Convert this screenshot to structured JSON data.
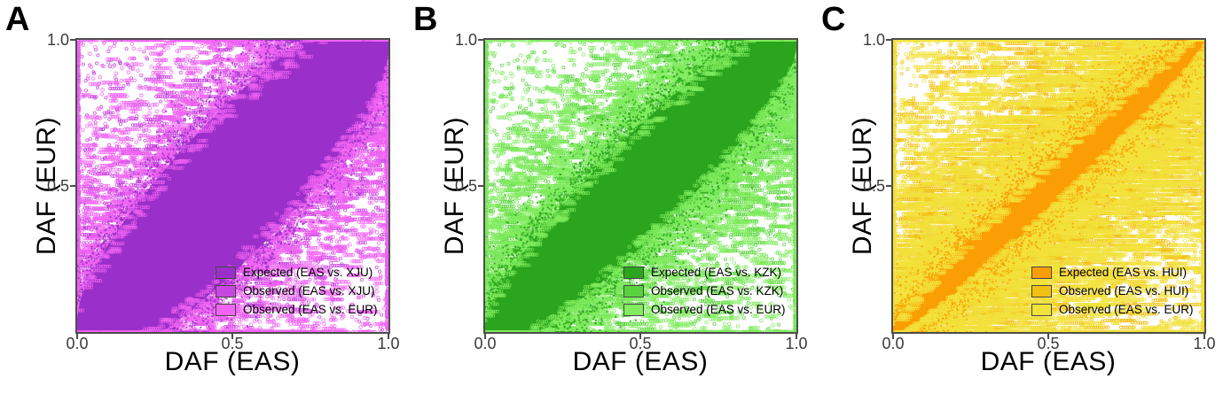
{
  "figure": {
    "background": "#ffffff",
    "frame_color": "#4d4d4d",
    "tick_color": "#3a3a3a",
    "text_color": "#000000",
    "swatch_border_color": "#454545",
    "panels": [
      {
        "letter": "A",
        "xlabel": "DAF (EAS)",
        "ylabel": "DAF (EUR)",
        "x_ticks": [
          "0.0",
          "0.5",
          "1.0"
        ],
        "y_ticks": [
          "1.0",
          "0.5"
        ],
        "legend": [
          {
            "label": "Expected (EAS vs. XJU)",
            "color": "#9B2FC9"
          },
          {
            "label": "Observed (EAS vs. XJU)",
            "color": "#C847E0"
          },
          {
            "label": "Observed (EAS vs. EUR)",
            "color": "#F164F3"
          }
        ]
      },
      {
        "letter": "B",
        "xlabel": "DAF (EAS)",
        "ylabel": "DAF (EUR)",
        "x_ticks": [
          "0.0",
          "0.5",
          "1.0"
        ],
        "y_ticks": [
          "1.0",
          "0.5"
        ],
        "legend": [
          {
            "label": "Expected (EAS vs. KZK)",
            "color": "#2BA51D"
          },
          {
            "label": "Observed (EAS vs. KZK)",
            "color": "#58D23D"
          },
          {
            "label": "Observed (EAS vs. EUR)",
            "color": "#80EC5E"
          }
        ]
      },
      {
        "letter": "C",
        "xlabel": "DAF (EAS)",
        "ylabel": "DAF (EUR)",
        "x_ticks": [
          "0.0",
          "0.5",
          "1.0"
        ],
        "y_ticks": [
          "1.0",
          "0.5"
        ],
        "legend": [
          {
            "label": "Expected (EAS vs. HUI)",
            "color": "#FB9D04"
          },
          {
            "label": "Observed (EAS vs. HUI)",
            "color": "#F2C114"
          },
          {
            "label": "Observed (EAS vs. EUR)",
            "color": "#F2E23C"
          }
        ]
      }
    ]
  },
  "chart_data": [
    {
      "type": "scatter",
      "panel": "A",
      "title": "",
      "xlabel": "DAF (EAS)",
      "ylabel": "DAF (EUR)",
      "xlim": [
        0.0,
        1.0
      ],
      "ylim": [
        0.0,
        1.0
      ],
      "x_tick_values": [
        0.0,
        0.5,
        1.0
      ],
      "y_tick_values": [
        0.5,
        1.0
      ],
      "grid": false,
      "legend_position": "bottom-right",
      "identity_relation": "y = x diagonal trend",
      "series": [
        {
          "name": "Expected (EAS vs. XJU)",
          "render": "diagonal-band",
          "color": "#9B2FC9",
          "band_base_halfwidth": 0.05,
          "band_sqrt_coef": 0.5,
          "edge_fuzz": 0.045
        },
        {
          "name": "Observed (EAS vs. XJU)",
          "render": "cloud",
          "color": "#C847E0",
          "spread": 0.17,
          "n": 6500,
          "chain_max": 8,
          "snap_prob": 0.45,
          "snap_rows": 72
        },
        {
          "name": "Observed (EAS vs. EUR)",
          "render": "cloud",
          "color": "#F164F3",
          "spread": 0.26,
          "n": 6500,
          "chain_max": 8,
          "snap_prob": 0.45,
          "snap_rows": 72
        }
      ],
      "seed": 11
    },
    {
      "type": "scatter",
      "panel": "B",
      "title": "",
      "xlabel": "DAF (EAS)",
      "ylabel": "DAF (EUR)",
      "xlim": [
        0.0,
        1.0
      ],
      "ylim": [
        0.0,
        1.0
      ],
      "x_tick_values": [
        0.0,
        0.5,
        1.0
      ],
      "y_tick_values": [
        0.5,
        1.0
      ],
      "grid": false,
      "legend_position": "bottom-right",
      "identity_relation": "y = x diagonal trend",
      "series": [
        {
          "name": "Expected (EAS vs. KZK)",
          "render": "diagonal-band",
          "color": "#2BA51D",
          "band_base_halfwidth": 0.03,
          "band_sqrt_coef": 0.36,
          "edge_fuzz": 0.05
        },
        {
          "name": "Observed (EAS vs. KZK)",
          "render": "cloud",
          "color": "#58D23D",
          "spread": 0.15,
          "n": 6500,
          "chain_max": 9,
          "snap_prob": 0.5,
          "snap_rows": 72
        },
        {
          "name": "Observed (EAS vs. EUR)",
          "render": "cloud",
          "color": "#80EC5E",
          "spread": 0.26,
          "n": 6500,
          "chain_max": 9,
          "snap_prob": 0.5,
          "snap_rows": 72
        }
      ],
      "seed": 22
    },
    {
      "type": "scatter",
      "panel": "C",
      "title": "",
      "xlabel": "DAF (EAS)",
      "ylabel": "DAF (EUR)",
      "xlim": [
        0.0,
        1.0
      ],
      "ylim": [
        0.0,
        1.0
      ],
      "x_tick_values": [
        0.0,
        0.5,
        1.0
      ],
      "y_tick_values": [
        0.5,
        1.0
      ],
      "grid": false,
      "legend_position": "bottom-right",
      "identity_relation": "y = x diagonal trend",
      "series": [
        {
          "name": "Expected (EAS vs. HUI)",
          "render": "diagonal-band",
          "color": "#FB9D04",
          "band_base_halfwidth": 0.012,
          "band_sqrt_coef": 0.14,
          "edge_fuzz": 0.035
        },
        {
          "name": "Observed (EAS vs. HUI)",
          "render": "cloud",
          "color": "#F2C114",
          "spread": 0.2,
          "n": 7000,
          "chain_max": 14,
          "snap_prob": 0.6,
          "snap_rows": 64
        },
        {
          "name": "Observed (EAS vs. EUR)",
          "render": "cloud",
          "color": "#F2E23C",
          "spread": 0.3,
          "n": 7000,
          "chain_max": 14,
          "snap_prob": 0.6,
          "snap_rows": 64
        }
      ],
      "seed": 33
    }
  ]
}
